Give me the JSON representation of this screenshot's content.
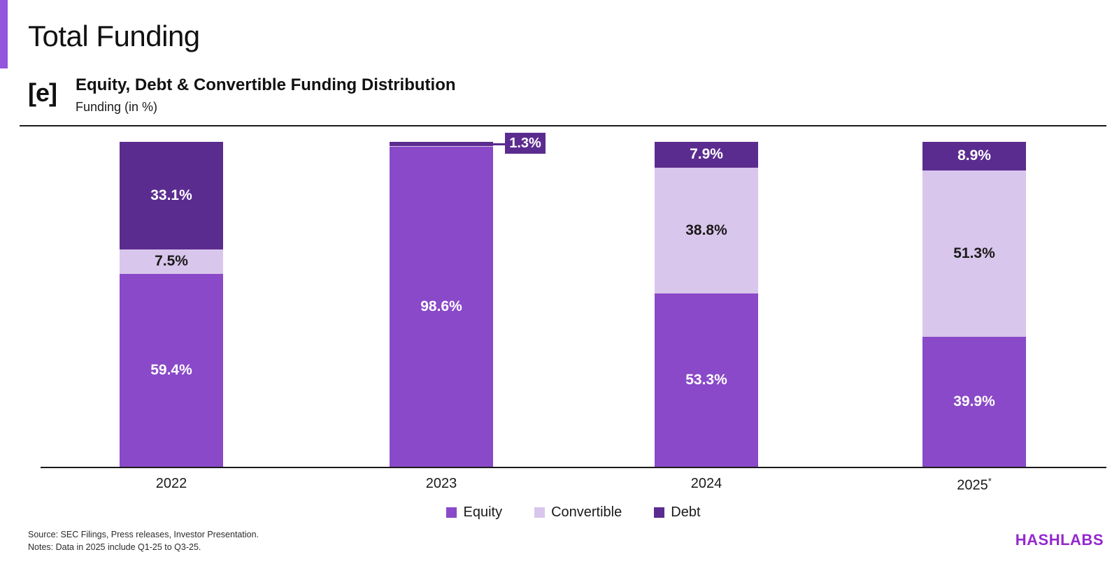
{
  "page": {
    "title": "Total Funding",
    "section_tag": "[e]",
    "section_title": "Equity, Debt & Convertible Funding Distribution",
    "section_subtitle": "Funding (in %)"
  },
  "chart_data": {
    "type": "bar",
    "stacked": true,
    "title": "Equity, Debt & Convertible Funding Distribution",
    "ylabel": "Funding (in %)",
    "ylim": [
      0,
      100
    ],
    "grid": false,
    "legend_position": "bottom",
    "categories": [
      "2022",
      "2023",
      "2024",
      "2025*"
    ],
    "series": [
      {
        "name": "Equity",
        "color": "#8949C8",
        "label_color": "#ffffff",
        "values": [
          59.4,
          98.6,
          53.3,
          39.9
        ],
        "labels": [
          "59.4%",
          "98.6%",
          "53.3%",
          "39.9%"
        ]
      },
      {
        "name": "Convertible",
        "color": "#D9C6EC",
        "label_color": "#1a1a1a",
        "values": [
          7.5,
          0.1,
          38.8,
          51.3
        ],
        "labels": [
          "7.5%",
          null,
          "38.8%",
          "51.3%"
        ]
      },
      {
        "name": "Debt",
        "color": "#5B2C8F",
        "label_color": "#ffffff",
        "values": [
          33.1,
          1.3,
          7.9,
          8.9
        ],
        "labels": [
          "33.1%",
          "1.3%",
          "7.9%",
          "8.9%"
        ]
      }
    ],
    "annotations": [
      {
        "type": "callout",
        "text": "1.3%",
        "category": "2023",
        "series": "Debt"
      }
    ]
  },
  "footer": {
    "source_line": "Source: SEC Filings, Press releases, Investor Presentation.",
    "notes_line": "Notes: Data in 2025 include Q1-25 to Q3-25.",
    "logo": "HASHLABS"
  },
  "colors": {
    "accent_bar": "#9156DB",
    "divider": "#1a1a1a",
    "axis": "#1a1a1a",
    "logo": "#9329CF"
  }
}
